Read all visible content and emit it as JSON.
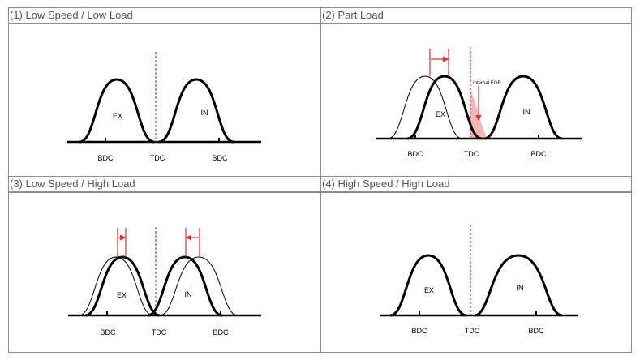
{
  "panels": [
    {
      "title": "(1) Low Speed / Low Load",
      "labels": {
        "ex": "EX",
        "in": "IN",
        "bdc_left": "BDC",
        "tdc": "TDC",
        "bdc_right": "BDC"
      }
    },
    {
      "title": "(2) Part Load",
      "labels": {
        "ex": "EX",
        "in": "IN",
        "bdc_left": "BDC",
        "tdc": "TDC",
        "bdc_right": "BDC",
        "annotation": "Internal EGR"
      }
    },
    {
      "title": "(3) Low Speed / High Load",
      "labels": {
        "ex": "EX",
        "in": "IN",
        "bdc_left": "BDC",
        "tdc": "TDC",
        "bdc_right": "BDC"
      }
    },
    {
      "title": "(4) High Speed / High Load",
      "labels": {
        "ex": "EX",
        "in": "IN",
        "bdc_left": "BDC",
        "tdc": "TDC",
        "bdc_right": "BDC"
      }
    }
  ],
  "colors": {
    "border": "#8c8c8c",
    "curve": "#000000",
    "tdc_line": "#e03030",
    "shift_arrow": "#e03030",
    "egr_fill": "#f4b8b8"
  }
}
